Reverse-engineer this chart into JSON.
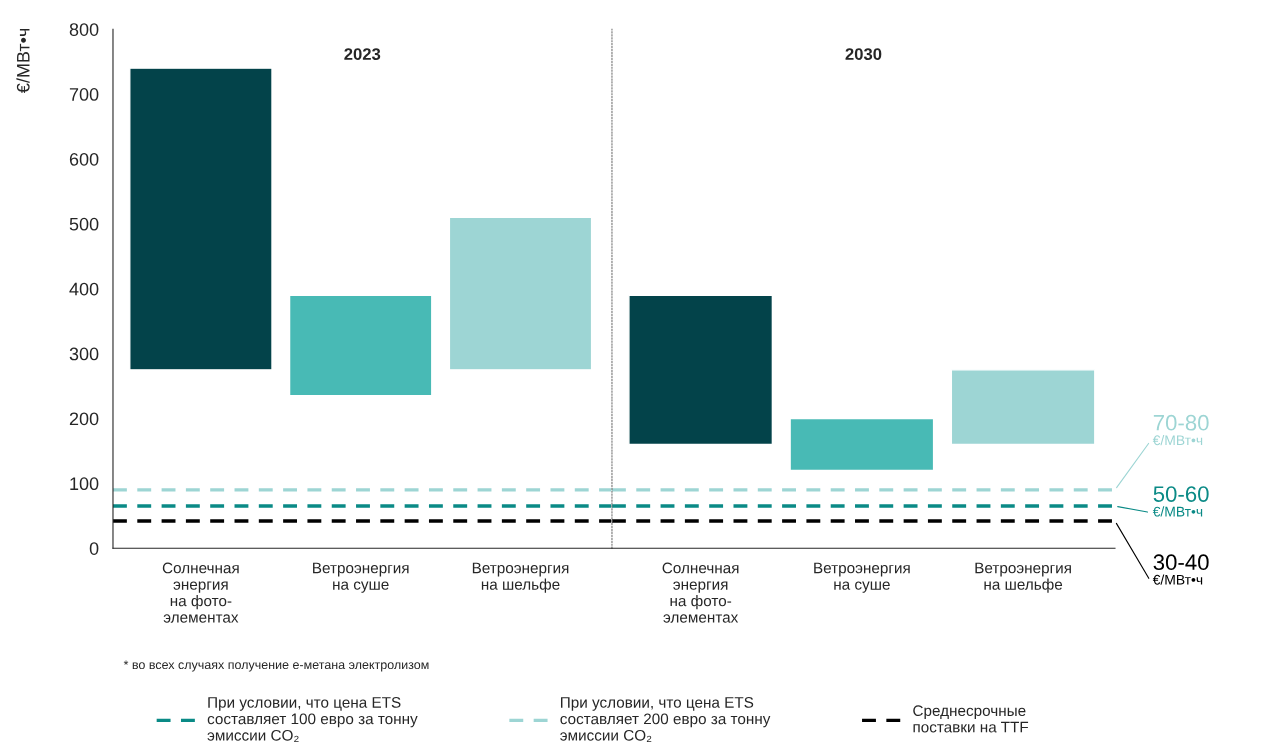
{
  "chart_data": [
    {
      "type": "bar",
      "title": "2023",
      "ylabel": "€/МВт•ч",
      "categories": [
        "Солнечная\nэнергия\nна фото-\nэлементах",
        "Ветроэнергия\nна суше",
        "Ветроэнергия\nна шельфе"
      ],
      "base": [
        275,
        235,
        275
      ],
      "values": [
        465,
        155,
        235
      ],
      "colors": [
        "#03434a",
        "#48bab5",
        "#9dd5d4"
      ],
      "ylim": [
        0,
        800
      ],
      "yticks": [
        0,
        100,
        200,
        300,
        400,
        500,
        600,
        700,
        800
      ],
      "grid": false,
      "legend": "bottom",
      "ref_lines": [
        {
          "axis": "y",
          "value": 90,
          "label": "При условии, что цена ETS\nсоставляет 200 евро за тонну\nэмиссии CO₂",
          "color": "#9dd5d4",
          "line_style": "dashed"
        },
        {
          "axis": "y",
          "value": 65,
          "label": "При условии, что цена ETS\nсоставляет 100 евро за тонну\nэмиссии CO₂",
          "color": "#0a8a86",
          "line_style": "dashed"
        },
        {
          "axis": "y",
          "value": 42,
          "label": "Среднесрочные\nпоставки на TTF",
          "color": "#000000",
          "line_style": "dashed"
        }
      ],
      "annotations": [
        "* во всех случаях получение e-метана электролизом"
      ]
    },
    {
      "type": "bar",
      "title": "2030",
      "categories": [
        "Солнечная\nэнергия\nна фото-\nэлементах",
        "Ветроэнергия\nна суше",
        "Ветроэнергия\nна шельфе"
      ],
      "base": [
        160,
        120,
        160
      ],
      "values": [
        230,
        80,
        115
      ],
      "colors": [
        "#03434a",
        "#48bab5",
        "#9dd5d4"
      ],
      "ylim": [
        0,
        800
      ],
      "yticks": [
        0,
        100,
        200,
        300,
        400,
        500,
        600,
        700,
        800
      ],
      "tick_labels": "x",
      "grid": false,
      "ref_lines": [
        {
          "axis": "y",
          "value": 90,
          "label": "70-80\n€/МВт•ч",
          "color": "#9dd5d4",
          "line_style": "dashed"
        },
        {
          "axis": "y",
          "value": 65,
          "label": "50-60\n€/МВт•ч",
          "color": "#0a8a86",
          "line_style": "dashed"
        },
        {
          "axis": "y",
          "value": 42,
          "label": "30-40\n€/МВт•ч",
          "color": "#000000",
          "line_style": "dashed"
        }
      ]
    }
  ]
}
